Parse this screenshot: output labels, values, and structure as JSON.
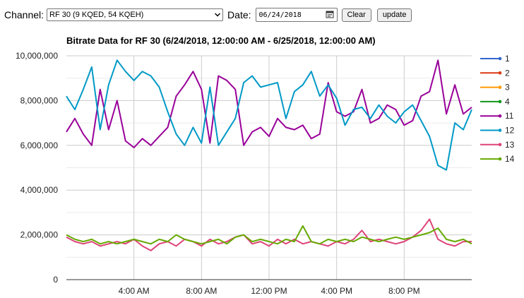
{
  "controls": {
    "channel_label": "Channel:",
    "channel_value": "RF 30 (9 KQED, 54 KQEH)",
    "date_label": "Date:",
    "date_value": "06/24/2018",
    "clear_label": "Clear",
    "update_label": "update"
  },
  "chart_data": {
    "type": "line",
    "title": "Bitrate Data for RF 30 (6/24/2018, 12:00:00 AM - 6/25/2018, 12:00:00 AM)",
    "xlabel": "",
    "ylabel": "",
    "x_range_hours": [
      0,
      24
    ],
    "x_ticks": [
      {
        "hour": 4,
        "label": "4:00 AM"
      },
      {
        "hour": 8,
        "label": "8:00 AM"
      },
      {
        "hour": 12,
        "label": "12:00 PM"
      },
      {
        "hour": 16,
        "label": "4:00 PM"
      },
      {
        "hour": 20,
        "label": "8:00 PM"
      }
    ],
    "ylim": [
      0,
      10000000
    ],
    "y_ticks": [
      {
        "value": 0,
        "label": "0"
      },
      {
        "value": 2000000,
        "label": "2,000,000"
      },
      {
        "value": 4000000,
        "label": "4,000,000"
      },
      {
        "value": 6000000,
        "label": "6,000,000"
      },
      {
        "value": 8000000,
        "label": "8,000,000"
      },
      {
        "value": 10000000,
        "label": "10,000,000"
      }
    ],
    "grid": true,
    "legend_position": "right",
    "series": [
      {
        "name": "1",
        "color": "#3366cc",
        "x": [],
        "y": []
      },
      {
        "name": "2",
        "color": "#dc3912",
        "x": [],
        "y": []
      },
      {
        "name": "3",
        "color": "#ff9900",
        "x": [],
        "y": []
      },
      {
        "name": "4",
        "color": "#109618",
        "x": [],
        "y": []
      },
      {
        "name": "11",
        "color": "#990099",
        "x": [
          0,
          0.5,
          1,
          1.5,
          2,
          2.5,
          3,
          3.5,
          4,
          4.5,
          5,
          5.5,
          6,
          6.5,
          7,
          7.5,
          8,
          8.5,
          9,
          9.5,
          10,
          10.5,
          11,
          11.5,
          12,
          12.5,
          13,
          13.5,
          14,
          14.5,
          15,
          15.5,
          16,
          16.5,
          17,
          17.5,
          18,
          18.5,
          19,
          19.5,
          20,
          20.5,
          21,
          21.5,
          22,
          22.5,
          23,
          23.5,
          24
        ],
        "y": [
          6600000,
          7200000,
          6500000,
          6000000,
          8500000,
          6700000,
          8000000,
          6200000,
          5900000,
          6300000,
          6000000,
          6400000,
          6800000,
          8200000,
          8700000,
          9300000,
          8500000,
          6100000,
          9100000,
          8900000,
          8500000,
          6000000,
          6600000,
          6800000,
          6400000,
          7200000,
          6800000,
          6700000,
          6900000,
          6300000,
          6500000,
          8800000,
          7500000,
          7300000,
          7500000,
          8500000,
          7000000,
          7200000,
          7800000,
          7600000,
          6900000,
          7100000,
          8200000,
          8400000,
          9800000,
          7400000,
          8700000,
          7400000,
          7700000
        ]
      },
      {
        "name": "12",
        "color": "#0099c6",
        "x": [
          0,
          0.5,
          1,
          1.5,
          2,
          2.5,
          3,
          3.5,
          4,
          4.5,
          5,
          5.5,
          6,
          6.5,
          7,
          7.5,
          8,
          8.5,
          9,
          9.5,
          10,
          10.5,
          11,
          11.5,
          12,
          12.5,
          13,
          13.5,
          14,
          14.5,
          15,
          15.5,
          16,
          16.5,
          17,
          17.5,
          18,
          18.5,
          19,
          19.5,
          20,
          20.5,
          21,
          21.5,
          22,
          22.5,
          23,
          23.5,
          24
        ],
        "y": [
          8200000,
          7600000,
          8500000,
          9500000,
          6700000,
          8700000,
          9800000,
          9300000,
          8900000,
          9300000,
          9100000,
          8600000,
          7500000,
          6500000,
          6000000,
          6800000,
          6100000,
          8600000,
          6000000,
          6600000,
          7200000,
          8800000,
          9100000,
          8600000,
          8700000,
          8800000,
          7200000,
          8400000,
          8700000,
          9300000,
          8200000,
          8700000,
          8100000,
          6900000,
          7600000,
          7700000,
          7200000,
          7800000,
          7300000,
          7000000,
          7500000,
          7800000,
          7100000,
          6400000,
          5100000,
          4900000,
          7000000,
          6700000,
          7600000
        ]
      },
      {
        "name": "13",
        "color": "#dd4477",
        "x": [
          0,
          0.5,
          1,
          1.5,
          2,
          2.5,
          3,
          3.5,
          4,
          4.5,
          5,
          5.5,
          6,
          6.5,
          7,
          7.5,
          8,
          8.5,
          9,
          9.5,
          10,
          10.5,
          11,
          11.5,
          12,
          12.5,
          13,
          13.5,
          14,
          14.5,
          15,
          15.5,
          16,
          16.5,
          17,
          17.5,
          18,
          18.5,
          19,
          19.5,
          20,
          20.5,
          21,
          21.5,
          22,
          22.5,
          23,
          23.5,
          24
        ],
        "y": [
          1900000,
          1700000,
          1600000,
          1700000,
          1500000,
          1600000,
          1700000,
          1600000,
          1800000,
          1500000,
          1300000,
          1600000,
          1700000,
          1500000,
          1800000,
          1700000,
          1500000,
          1800000,
          1600000,
          1700000,
          1900000,
          2000000,
          1600000,
          1700000,
          1500000,
          1800000,
          1600000,
          1800000,
          1600000,
          1700000,
          1600000,
          1500000,
          1700000,
          1600000,
          1800000,
          2200000,
          1700000,
          1800000,
          1700000,
          1600000,
          1700000,
          1900000,
          2200000,
          2700000,
          1800000,
          1600000,
          1500000,
          1700000,
          1700000
        ]
      },
      {
        "name": "14",
        "color": "#66aa00",
        "x": [
          0,
          0.5,
          1,
          1.5,
          2,
          2.5,
          3,
          3.5,
          4,
          4.5,
          5,
          5.5,
          6,
          6.5,
          7,
          7.5,
          8,
          8.5,
          9,
          9.5,
          10,
          10.5,
          11,
          11.5,
          12,
          12.5,
          13,
          13.5,
          14,
          14.5,
          15,
          15.5,
          16,
          16.5,
          17,
          17.5,
          18,
          18.5,
          19,
          19.5,
          20,
          20.5,
          21,
          21.5,
          22,
          22.5,
          23,
          23.5,
          24
        ],
        "y": [
          2000000,
          1800000,
          1700000,
          1800000,
          1600000,
          1700000,
          1600000,
          1700000,
          1800000,
          1700000,
          1600000,
          1800000,
          1700000,
          2000000,
          1800000,
          1700000,
          1600000,
          1700000,
          1800000,
          1600000,
          1900000,
          2000000,
          1700000,
          1800000,
          1700000,
          1600000,
          1800000,
          1700000,
          2400000,
          1700000,
          1600000,
          1800000,
          1700000,
          1800000,
          1700000,
          1900000,
          1800000,
          1700000,
          1800000,
          1900000,
          1800000,
          1900000,
          2000000,
          2100000,
          2300000,
          1800000,
          1700000,
          1800000,
          1600000
        ]
      }
    ]
  }
}
